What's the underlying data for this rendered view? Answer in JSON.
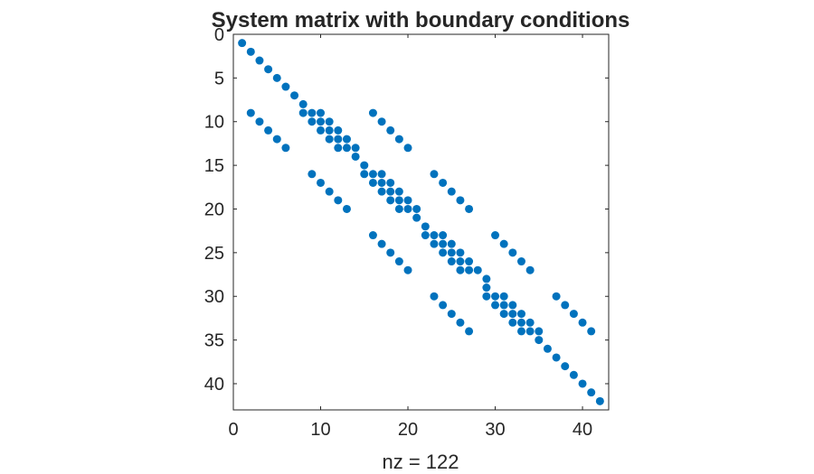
{
  "chart_data": {
    "type": "scatter",
    "title": "System matrix with boundary conditions",
    "xlabel": "nz = 122",
    "ylabel": "",
    "xlim": [
      0,
      43
    ],
    "ylim": [
      0,
      43
    ],
    "y_reversed": true,
    "xticks": [
      0,
      10,
      20,
      30,
      40
    ],
    "yticks": [
      0,
      5,
      10,
      15,
      20,
      25,
      30,
      35,
      40
    ],
    "grid": false,
    "marker_color": "#0072BD",
    "points": [
      [
        1,
        1
      ],
      [
        2,
        2
      ],
      [
        3,
        3
      ],
      [
        4,
        4
      ],
      [
        5,
        5
      ],
      [
        6,
        6
      ],
      [
        7,
        7
      ],
      [
        8,
        8
      ],
      [
        8,
        9
      ],
      [
        9,
        9
      ],
      [
        9,
        10
      ],
      [
        10,
        9
      ],
      [
        10,
        10
      ],
      [
        10,
        11
      ],
      [
        11,
        10
      ],
      [
        11,
        11
      ],
      [
        11,
        12
      ],
      [
        12,
        11
      ],
      [
        12,
        12
      ],
      [
        12,
        13
      ],
      [
        13,
        12
      ],
      [
        13,
        13
      ],
      [
        14,
        13
      ],
      [
        14,
        14
      ],
      [
        15,
        15
      ],
      [
        15,
        16
      ],
      [
        16,
        16
      ],
      [
        16,
        17
      ],
      [
        2,
        9
      ],
      [
        3,
        10
      ],
      [
        4,
        11
      ],
      [
        5,
        12
      ],
      [
        6,
        13
      ],
      [
        16,
        9
      ],
      [
        17,
        10
      ],
      [
        18,
        11
      ],
      [
        19,
        12
      ],
      [
        20,
        13
      ],
      [
        9,
        16
      ],
      [
        10,
        17
      ],
      [
        11,
        18
      ],
      [
        12,
        19
      ],
      [
        13,
        20
      ],
      [
        17,
        16
      ],
      [
        17,
        17
      ],
      [
        17,
        18
      ],
      [
        18,
        17
      ],
      [
        18,
        18
      ],
      [
        18,
        19
      ],
      [
        19,
        18
      ],
      [
        19,
        19
      ],
      [
        19,
        20
      ],
      [
        20,
        19
      ],
      [
        20,
        20
      ],
      [
        21,
        20
      ],
      [
        21,
        21
      ],
      [
        22,
        22
      ],
      [
        22,
        23
      ],
      [
        23,
        16
      ],
      [
        24,
        17
      ],
      [
        25,
        18
      ],
      [
        26,
        19
      ],
      [
        27,
        20
      ],
      [
        16,
        23
      ],
      [
        17,
        24
      ],
      [
        18,
        25
      ],
      [
        19,
        26
      ],
      [
        20,
        27
      ],
      [
        23,
        23
      ],
      [
        23,
        24
      ],
      [
        24,
        23
      ],
      [
        24,
        24
      ],
      [
        24,
        25
      ],
      [
        25,
        24
      ],
      [
        25,
        25
      ],
      [
        25,
        26
      ],
      [
        26,
        25
      ],
      [
        26,
        26
      ],
      [
        26,
        27
      ],
      [
        27,
        26
      ],
      [
        27,
        27
      ],
      [
        28,
        27
      ],
      [
        29,
        28
      ],
      [
        29,
        29
      ],
      [
        29,
        30
      ],
      [
        30,
        23
      ],
      [
        31,
        24
      ],
      [
        32,
        25
      ],
      [
        33,
        26
      ],
      [
        34,
        27
      ],
      [
        23,
        30
      ],
      [
        24,
        31
      ],
      [
        25,
        32
      ],
      [
        26,
        33
      ],
      [
        27,
        34
      ],
      [
        30,
        30
      ],
      [
        30,
        31
      ],
      [
        31,
        30
      ],
      [
        31,
        31
      ],
      [
        31,
        32
      ],
      [
        32,
        31
      ],
      [
        32,
        32
      ],
      [
        32,
        33
      ],
      [
        33,
        32
      ],
      [
        33,
        33
      ],
      [
        33,
        34
      ],
      [
        34,
        33
      ],
      [
        34,
        34
      ],
      [
        35,
        34
      ],
      [
        37,
        30
      ],
      [
        38,
        31
      ],
      [
        39,
        32
      ],
      [
        40,
        33
      ],
      [
        41,
        34
      ],
      [
        35,
        35
      ],
      [
        36,
        36
      ],
      [
        37,
        37
      ],
      [
        38,
        38
      ],
      [
        39,
        39
      ],
      [
        40,
        40
      ],
      [
        41,
        41
      ],
      [
        42,
        42
      ]
    ]
  }
}
